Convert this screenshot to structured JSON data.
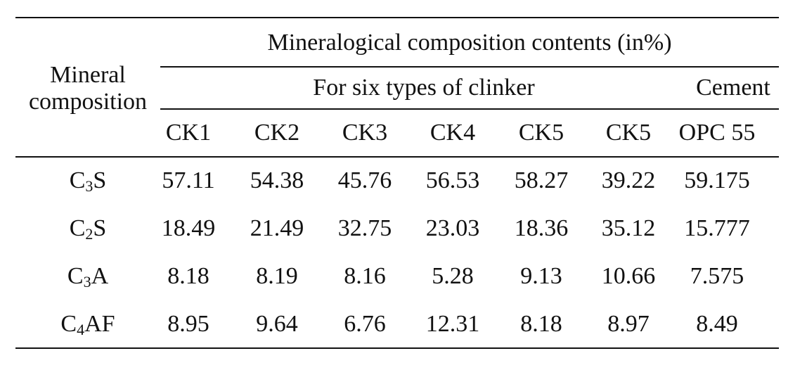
{
  "table": {
    "mineral_header": [
      "Mineral",
      "composition"
    ],
    "main_header": "Mineralogical composition contents (in%)",
    "clinker_group_header": "For six types of clinker",
    "cement_group_header": "Cement",
    "columns": [
      "CK1",
      "CK2",
      "CK3",
      "CK4",
      "CK5",
      "CK5",
      "OPC 55"
    ],
    "rows": [
      {
        "base": "C",
        "sub": "3",
        "rest": "S",
        "values": [
          "57.11",
          "54.38",
          "45.76",
          "56.53",
          "58.27",
          "39.22",
          "59.175"
        ]
      },
      {
        "base": "C",
        "sub": "2",
        "rest": "S",
        "values": [
          "18.49",
          "21.49",
          "32.75",
          "23.03",
          "18.36",
          "35.12",
          "15.777"
        ]
      },
      {
        "base": "C",
        "sub": "3",
        "rest": "A",
        "values": [
          "8.18",
          "8.19",
          "8.16",
          "5.28",
          "9.13",
          "10.66",
          "7.575"
        ]
      },
      {
        "base": "C",
        "sub": "4",
        "rest": "AF",
        "values": [
          "8.95",
          "9.64",
          "6.76",
          "12.31",
          "8.18",
          "8.97",
          "8.49"
        ]
      }
    ]
  }
}
